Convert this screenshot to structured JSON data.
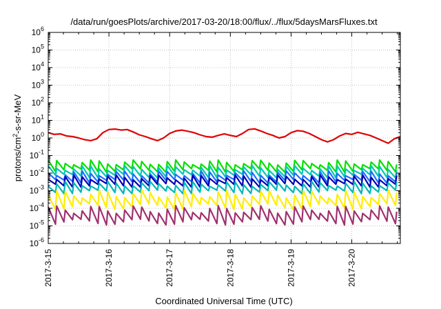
{
  "chart_data": {
    "type": "line",
    "title": "/data/run/goesPlots/archive/2017-03-20/18:00/flux/../flux/5daysMarsFluxes.txt",
    "xlabel": "Coordinated Universal Time (UTC)",
    "ylabel_pre": "protons/cm",
    "ylabel_sup": "2",
    "ylabel_post": "-s-sr-MeV",
    "yscale": "log",
    "ylim_exp": [
      -6,
      6
    ],
    "y_ticks": [
      {
        "base": "10",
        "exp": "-6"
      },
      {
        "base": "10",
        "exp": "-5"
      },
      {
        "base": "10",
        "exp": "-4"
      },
      {
        "base": "10",
        "exp": "-3"
      },
      {
        "base": "10",
        "exp": "-2"
      },
      {
        "base": "10",
        "exp": "-1"
      },
      {
        "base": "10",
        "exp": "0"
      },
      {
        "base": "10",
        "exp": "1"
      },
      {
        "base": "10",
        "exp": "2"
      },
      {
        "base": "10",
        "exp": "3"
      },
      {
        "base": "10",
        "exp": "4"
      },
      {
        "base": "10",
        "exp": "5"
      },
      {
        "base": "10",
        "exp": "6"
      }
    ],
    "x_ticks": [
      "2017-3-15",
      "2017-3-16",
      "2017-3-17",
      "2017-3-18",
      "2017-3-19",
      "2017-3-20"
    ],
    "x_range_days": [
      0,
      5.8
    ],
    "grid": true,
    "series": [
      {
        "color": "#e00000",
        "x": [
          0.0,
          0.1,
          0.2,
          0.3,
          0.4,
          0.5,
          0.6,
          0.7,
          0.8,
          0.9,
          1.0,
          1.1,
          1.2,
          1.3,
          1.4,
          1.5,
          1.6,
          1.7,
          1.8,
          1.9,
          2.0,
          2.1,
          2.2,
          2.3,
          2.4,
          2.5,
          2.6,
          2.7,
          2.8,
          2.9,
          3.0,
          3.1,
          3.2,
          3.3,
          3.4,
          3.5,
          3.6,
          3.7,
          3.8,
          3.9,
          4.0,
          4.1,
          4.2,
          4.3,
          4.4,
          4.5,
          4.6,
          4.7,
          4.8,
          4.9,
          5.0,
          5.1,
          5.2,
          5.3,
          5.4,
          5.5,
          5.6,
          5.7,
          5.8
        ],
        "y": [
          2.0,
          1.6,
          1.7,
          1.3,
          1.2,
          1.0,
          0.8,
          0.7,
          0.9,
          2.0,
          3.0,
          3.2,
          2.8,
          3.0,
          2.2,
          1.5,
          1.2,
          0.9,
          0.7,
          1.0,
          1.8,
          2.5,
          2.8,
          2.4,
          2.0,
          1.5,
          1.2,
          1.1,
          1.4,
          1.7,
          1.4,
          1.2,
          1.8,
          3.0,
          3.3,
          2.5,
          1.8,
          1.4,
          1.0,
          1.2,
          2.0,
          2.6,
          2.4,
          1.8,
          1.2,
          0.8,
          0.6,
          0.8,
          1.3,
          1.8,
          1.6,
          2.1,
          1.7,
          1.4,
          1.0,
          0.7,
          0.5,
          0.9,
          1.2
        ]
      },
      {
        "color": "#00e000",
        "x": [
          0,
          5.8
        ],
        "y": [
          0.025,
          0.026
        ]
      },
      {
        "color": "#00c8b4",
        "x": [
          0,
          5.8
        ],
        "y": [
          0.012,
          0.012
        ]
      },
      {
        "color": "#1e6eff",
        "x": [
          0,
          5.8
        ],
        "y": [
          0.006,
          0.006
        ]
      },
      {
        "color": "#0000b0",
        "x": [
          0,
          5.8
        ],
        "y": [
          0.0035,
          0.0035
        ]
      },
      {
        "color": "#00b8b8",
        "x": [
          0,
          5.8
        ],
        "y": [
          0.0015,
          0.0015
        ]
      },
      {
        "color": "#ffee00",
        "x": [
          0,
          5.8
        ],
        "y": [
          0.0003,
          0.0003
        ]
      },
      {
        "color": "#a0306e",
        "x": [
          0,
          5.8
        ],
        "y": [
          4e-05,
          4e-05
        ]
      }
    ]
  }
}
